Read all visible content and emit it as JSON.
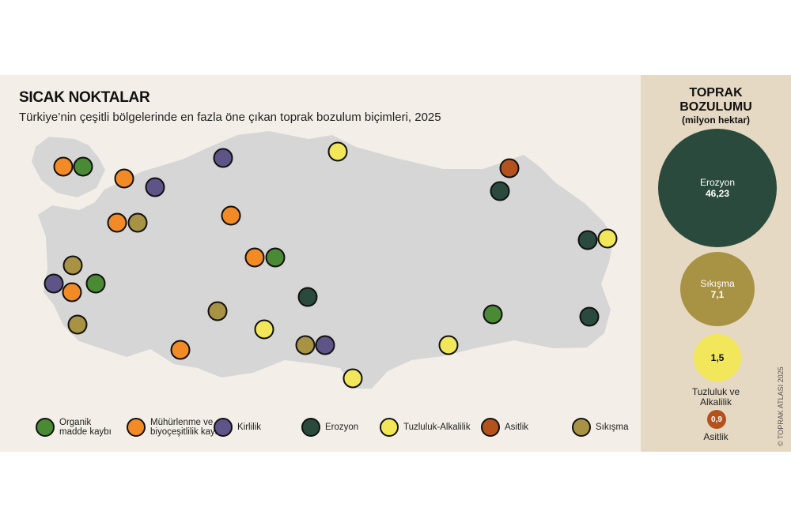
{
  "title": "SICAK NOKTALAR",
  "subtitle": "Türkiye’nin çeşitli bölgelerinde en fazla öne çıkan toprak bozulum biçimleri, 2025",
  "colors": {
    "organik": "#4a8a34",
    "muhurlenme": "#f28a25",
    "kirlilik": "#5e5488",
    "erozyon": "#2a4a3e",
    "tuzluluk": "#f2e75a",
    "asitlik": "#b4521e",
    "sikisma": "#a89244",
    "land": "#d6d6d6",
    "panel_left": "#f3efe8",
    "panel_right": "#e6d9c3"
  },
  "legend": [
    {
      "key": "organik",
      "label_line1": "Organik",
      "label_line2": "madde kaybı"
    },
    {
      "key": "muhurlenme",
      "label_line1": "Mühürlenme ve",
      "label_line2": "biyoçeşitlilik kaybı"
    },
    {
      "key": "kirlilik",
      "label_line1": "Kirlilik",
      "label_line2": ""
    },
    {
      "key": "erozyon",
      "label_line1": "Erozyon",
      "label_line2": ""
    },
    {
      "key": "tuzluluk",
      "label_line1": "Tuzluluk-Alkalilik",
      "label_line2": ""
    },
    {
      "key": "asitlik",
      "label_line1": "Asitlik",
      "label_line2": ""
    },
    {
      "key": "sikisma",
      "label_line1": "Sıkışma",
      "label_line2": ""
    }
  ],
  "panel": {
    "title_line1": "TOPRAK",
    "title_line2": "BOZULUMU",
    "unit": "(milyon hektar)",
    "items": [
      {
        "key": "erozyon",
        "label": "Erozyon",
        "value": "46,23"
      },
      {
        "key": "sikisma",
        "label": "Sıkışma",
        "value": "7,1"
      },
      {
        "key": "tuzluluk",
        "label": "Tuzluluk ve Alkalilik",
        "label_line1": "Tuzluluk ve",
        "label_line2": "Alkalilik",
        "value": "1,5"
      },
      {
        "key": "asitlik",
        "label": "Asitlik",
        "value": "0,9"
      }
    ],
    "copyright": "© TOPRAK ATLASI 2025"
  }
}
